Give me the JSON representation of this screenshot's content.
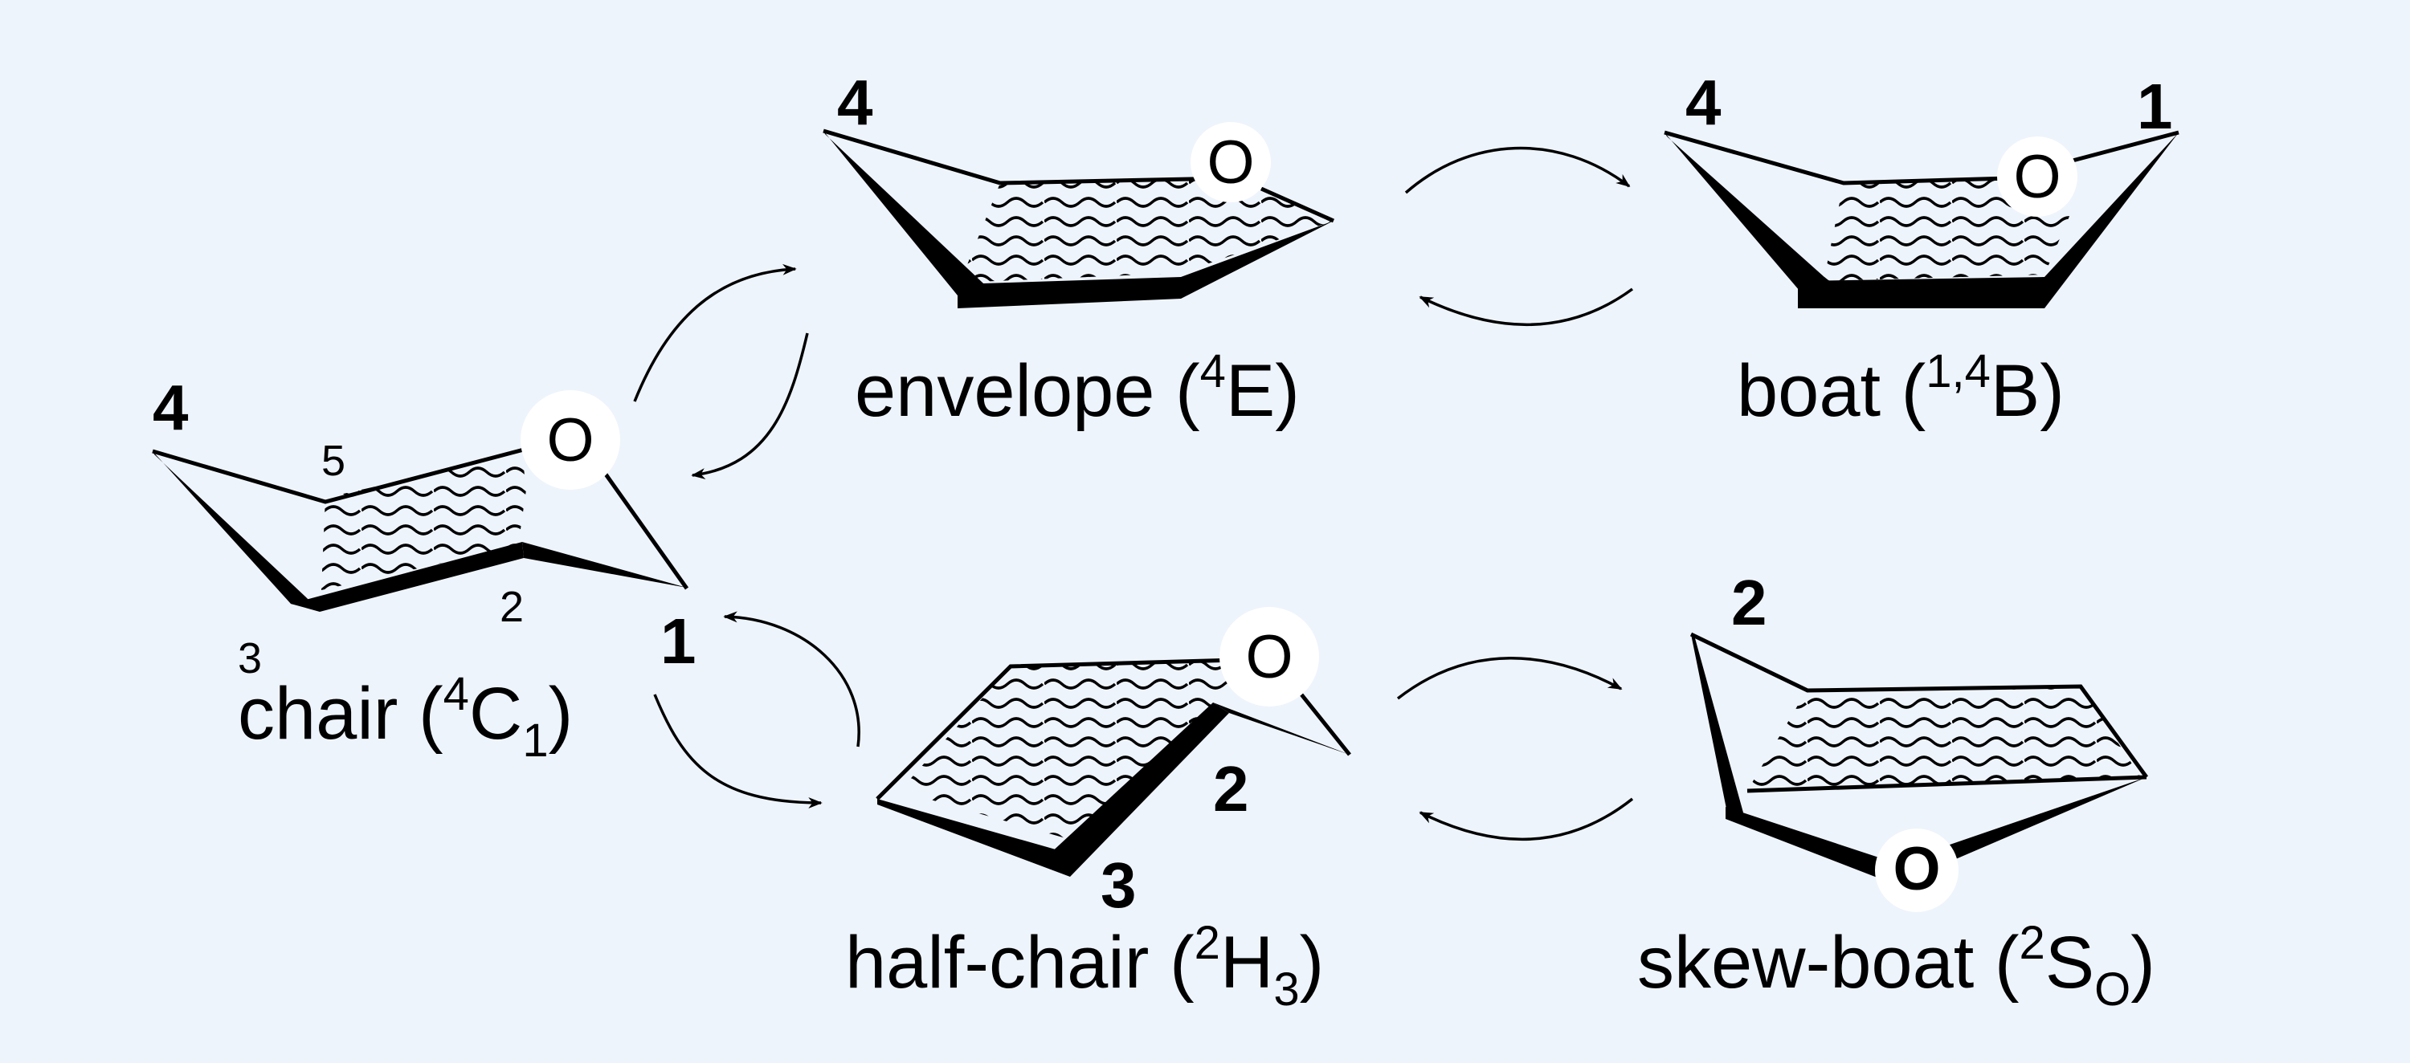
{
  "conformers": {
    "chair": {
      "name": "chair",
      "notation": {
        "pre": "4",
        "letter": "C",
        "sub": "1"
      },
      "atoms": {
        "c4": "4",
        "c5": "5",
        "c3": "3",
        "c2": "2",
        "c1": "1",
        "ring_o": "O"
      }
    },
    "envelope": {
      "name": "envelope",
      "notation": {
        "pre": "4",
        "letter": "E",
        "sub": ""
      },
      "atoms": {
        "c4": "4",
        "ring_o": "O"
      }
    },
    "boat": {
      "name": "boat",
      "notation": {
        "pre": "1,4",
        "letter": "B",
        "sub": ""
      },
      "atoms": {
        "c4": "4",
        "c1": "1",
        "ring_o": "O"
      }
    },
    "half_chair": {
      "name": "half-chair",
      "notation": {
        "pre": "2",
        "letter": "H",
        "sub": "3"
      },
      "atoms": {
        "c2": "2",
        "c3": "3",
        "ring_o": "O"
      }
    },
    "skew_boat": {
      "name": "skew-boat",
      "notation": {
        "pre": "2",
        "letter": "S",
        "sub": "O"
      },
      "atoms": {
        "c2": "2",
        "ring_o": "O"
      }
    }
  },
  "colors": {
    "background": "#eef4fc",
    "ink": "#000000",
    "atom_halo": "#ffffff"
  },
  "equilibria": [
    [
      "chair",
      "envelope"
    ],
    [
      "chair",
      "half_chair"
    ],
    [
      "envelope",
      "boat"
    ],
    [
      "half_chair",
      "skew_boat"
    ]
  ]
}
